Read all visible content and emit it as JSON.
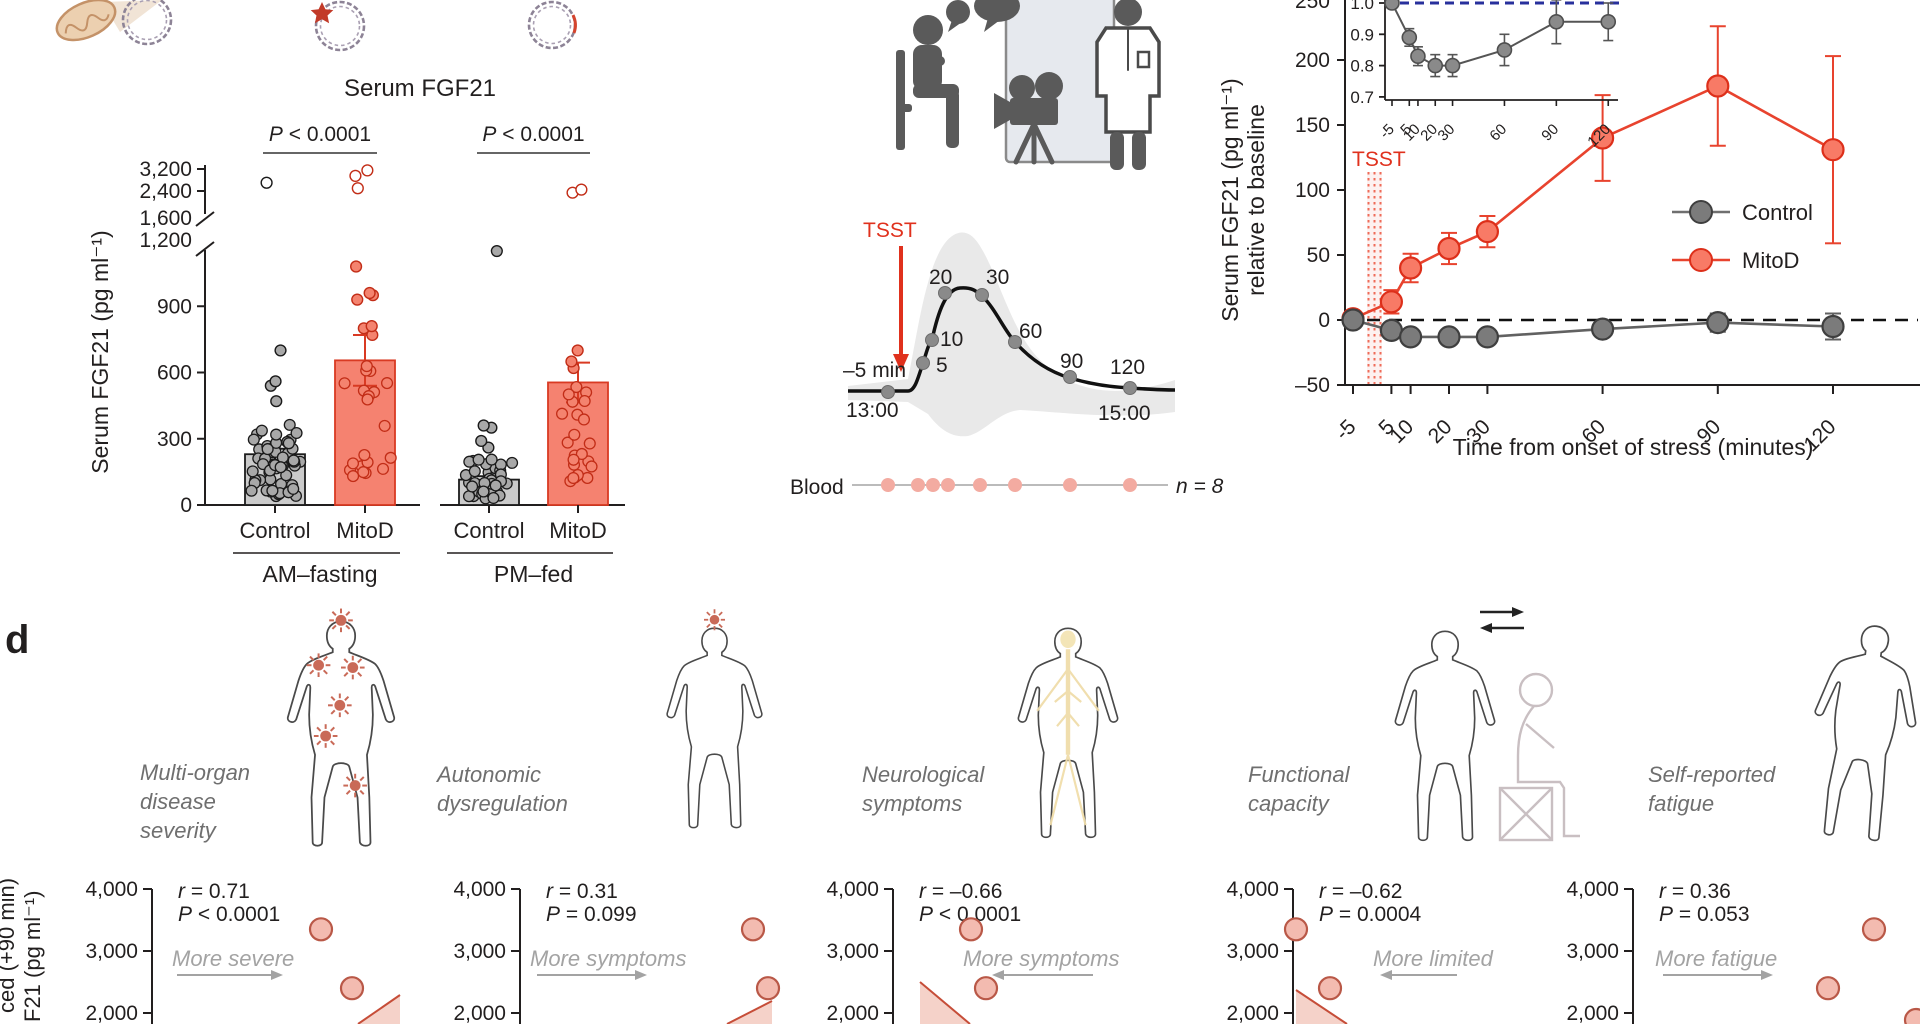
{
  "panel_d_label": "d",
  "chart_data": [
    {
      "id": "serum_fgf21_bars",
      "type": "bar",
      "title": "Serum FGF21",
      "ylabel": "Serum FGF21 (pg ml⁻¹)",
      "y_ticks": [
        0,
        300,
        600,
        900,
        1200,
        1600,
        2400,
        3200
      ],
      "y_tick_labels": [
        "0",
        "300",
        "600",
        "900",
        "1,200",
        "1,600",
        "2,400",
        "3,200"
      ],
      "axis_break_between": [
        1200,
        1600
      ],
      "bar_colors": {
        "control": "#cbcbcb",
        "mitod": "#f58270"
      },
      "groups": [
        {
          "label": "AM–fasting",
          "p_value": "P < 0.0001",
          "bars": [
            {
              "label": "Control",
              "mean": 230,
              "sem": 25,
              "n_points": 52,
              "jitter_range": [
                40,
                380
              ],
              "extra_points": [
                470,
                540,
                560,
                700,
                2700
              ]
            },
            {
              "label": "MitoD",
              "mean": 655,
              "sem": 115,
              "n_points": 20,
              "jitter_range": [
                130,
                640
              ],
              "extra_points": [
                770,
                800,
                810,
                930,
                950,
                960,
                1080,
                2500,
                2950,
                3150
              ]
            }
          ]
        },
        {
          "label": "PM–fed",
          "p_value": "P < 0.0001",
          "bars": [
            {
              "label": "Control",
              "mean": 115,
              "sem": 15,
              "n_points": 40,
              "jitter_range": [
                30,
                210
              ],
              "extra_points": [
                260,
                290,
                350,
                360,
                1150
              ]
            },
            {
              "label": "MitoD",
              "mean": 555,
              "sem": 90,
              "n_points": 22,
              "jitter_range": [
                90,
                560
              ],
              "extra_points": [
                620,
                650,
                700,
                2350,
                2450
              ]
            }
          ]
        }
      ]
    },
    {
      "id": "tsst_protocol",
      "type": "line",
      "tsst_label": "TSST",
      "timepoints": [
        -5,
        5,
        10,
        20,
        30,
        60,
        90,
        120
      ],
      "timepoint_labels": [
        "–5 min",
        "5",
        "10",
        "20",
        "30",
        "60",
        "90",
        "120"
      ],
      "start_clock": "13:00",
      "end_clock": "15:00",
      "blood_label": "Blood",
      "n_label": "n = 8",
      "n_blood_draws": 8
    },
    {
      "id": "fgf21_stress_response",
      "type": "line",
      "xlabel": "Time from onset of stress (minutes)",
      "ylabel_line1": "Serum FGF21 (pg ml⁻¹)",
      "ylabel_line2": "relative to baseline",
      "x": [
        -5,
        5,
        10,
        20,
        30,
        60,
        90,
        120
      ],
      "x_tick_labels": [
        "-5",
        "5",
        "10",
        "20",
        "30",
        "60",
        "90",
        "120"
      ],
      "y_ticks": [
        -50,
        0,
        50,
        100,
        150,
        200,
        250
      ],
      "y_tick_labels": [
        "–50",
        "0",
        "50",
        "100",
        "150",
        "200",
        "250"
      ],
      "tsst_label": "TSST",
      "baseline_dashed_y": 0,
      "legend": [
        "Control",
        "MitoD"
      ],
      "series": [
        {
          "name": "Control",
          "color": "#6f6f6f",
          "values": [
            0,
            -8,
            -13,
            -13,
            -13,
            -7,
            -2,
            -5
          ],
          "errors": [
            3,
            4,
            4,
            4,
            4,
            5,
            7,
            10
          ]
        },
        {
          "name": "MitoD",
          "color": "#e8432e",
          "values": [
            1,
            14,
            40,
            55,
            68,
            140,
            180,
            131
          ],
          "errors": [
            3,
            9,
            11,
            12,
            12,
            33,
            46,
            72
          ]
        }
      ],
      "inset": {
        "y_ticks": [
          0.7,
          0.8,
          0.9,
          1.0
        ],
        "y_tick_labels": [
          "0.7",
          "0.8",
          "0.9",
          "1.0"
        ],
        "x_tick_labels": [
          "-5",
          "5",
          "10",
          "20",
          "30",
          "60",
          "90",
          "120"
        ],
        "dashed_y": 1.0,
        "values": [
          1.0,
          0.89,
          0.83,
          0.8,
          0.8,
          0.85,
          0.94,
          0.94
        ],
        "errors": [
          0.012,
          0.028,
          0.03,
          0.035,
          0.035,
          0.05,
          0.07,
          0.06
        ]
      }
    },
    {
      "id": "fgf21_correlations",
      "type": "scatter",
      "shared_y_tick_labels": [
        "4,000",
        "3,000",
        "2,000"
      ],
      "shared_y_ticks": [
        4000,
        3000,
        2000
      ],
      "y_axis_label_fragments": [
        "ced (+90 min)",
        "F21 (pg ml⁻¹)"
      ],
      "panels": [
        {
          "label_lines": [
            "Multi-organ",
            "disease",
            "severity"
          ],
          "r": "r = 0.71",
          "p": "P < 0.0001",
          "annotation": "More severe",
          "arrow": "right",
          "trend": "up",
          "points": [
            3350,
            2400
          ]
        },
        {
          "label_lines": [
            "Autonomic",
            "dysregulation"
          ],
          "r": "r = 0.31",
          "p": "P = 0.099",
          "annotation": "More symptoms",
          "arrow": "right",
          "trend": "up",
          "points": [
            3350,
            2400
          ]
        },
        {
          "label_lines": [
            "Neurological",
            "symptoms"
          ],
          "r": "r = –0.66",
          "p": "P < 0.0001",
          "annotation": "More symptoms",
          "arrow": "left",
          "trend": "down",
          "points": [
            3350,
            2400
          ]
        },
        {
          "label_lines": [
            "Functional",
            "capacity"
          ],
          "r": "r = –0.62",
          "p": "P = 0.0004",
          "annotation": "More limited",
          "arrow": "left",
          "trend": "down",
          "points": [
            3350,
            2400
          ]
        },
        {
          "label_lines": [
            "Self-reported",
            "fatigue"
          ],
          "r": "r = 0.36",
          "p": "P = 0.053",
          "annotation": "More fatigue",
          "arrow": "right",
          "trend": "up",
          "points": [
            3350,
            2400
          ]
        }
      ]
    }
  ]
}
